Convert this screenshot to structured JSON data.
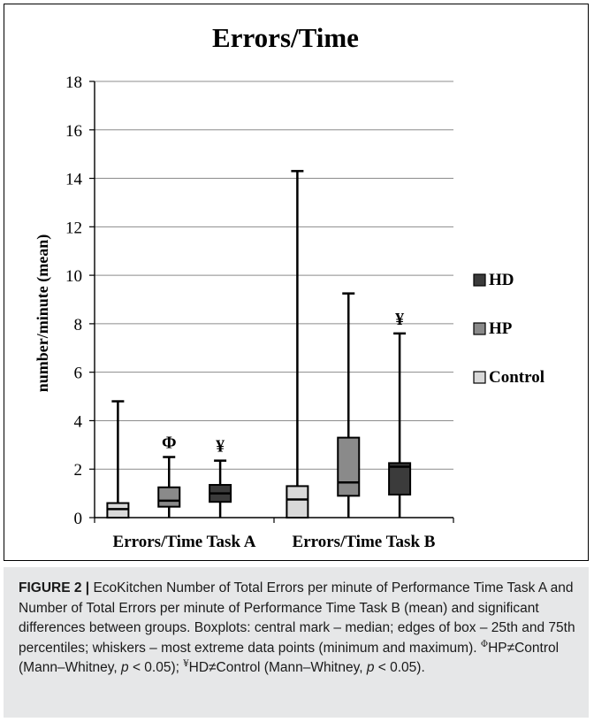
{
  "chart_data": {
    "type": "boxplot",
    "title": "Errors/Time",
    "ylabel": "number/minute (mean)",
    "ylim": [
      0,
      18
    ],
    "yticks": [
      0,
      2,
      4,
      6,
      8,
      10,
      12,
      14,
      16,
      18
    ],
    "grid": true,
    "legend_position": "right",
    "categories": [
      "Errors/Time Task A",
      "Errors/Time Task B"
    ],
    "series_colors": {
      "HD": "#3b3b3b",
      "HP": "#8a8a8a",
      "Control": "#d9d9d9"
    },
    "legend": [
      {
        "name": "HD",
        "color": "#3b3b3b"
      },
      {
        "name": "HP",
        "color": "#8a8a8a"
      },
      {
        "name": "Control",
        "color": "#d9d9d9"
      }
    ],
    "boxes": [
      {
        "category": "Errors/Time Task A",
        "group": "Control",
        "min": 0,
        "q1": 0,
        "median": 0.35,
        "q3": 0.6,
        "max": 4.8,
        "annotation": ""
      },
      {
        "category": "Errors/Time Task A",
        "group": "HP",
        "min": 0,
        "q1": 0.45,
        "median": 0.7,
        "q3": 1.25,
        "max": 2.5,
        "annotation": "Φ"
      },
      {
        "category": "Errors/Time Task A",
        "group": "HD",
        "min": 0,
        "q1": 0.65,
        "median": 1.0,
        "q3": 1.35,
        "max": 2.35,
        "annotation": "¥"
      },
      {
        "category": "Errors/Time Task B",
        "group": "Control",
        "min": 0,
        "q1": 0,
        "median": 0.75,
        "q3": 1.3,
        "max": 14.3,
        "annotation": ""
      },
      {
        "category": "Errors/Time Task B",
        "group": "HP",
        "min": 0,
        "q1": 0.9,
        "median": 1.45,
        "q3": 3.3,
        "max": 9.25,
        "annotation": ""
      },
      {
        "category": "Errors/Time Task B",
        "group": "HD",
        "min": 0,
        "q1": 0.95,
        "median": 2.1,
        "q3": 2.25,
        "max": 7.6,
        "annotation": "¥"
      }
    ]
  },
  "caption": {
    "label": "FIGURE 2 |",
    "text": "EcoKitchen Number of Total Errors per minute of Performance Time Task A and Number of Total Errors per minute of Performance Time Task B (mean) and significant differences between groups. Boxplots: central mark – median; edges of box – 25th and 75th percentiles; whiskers – most extreme data points (minimum and maximum).",
    "note1_symbol": "Φ",
    "note1_text": "HP≠Control (Mann–Whitney,",
    "note2_symbol": "¥",
    "note2_text": "HD≠Control (Mann–Whitney,",
    "p_var": "p",
    "p_value": "< 0.05);",
    "p_value_end": "< 0.05)."
  }
}
